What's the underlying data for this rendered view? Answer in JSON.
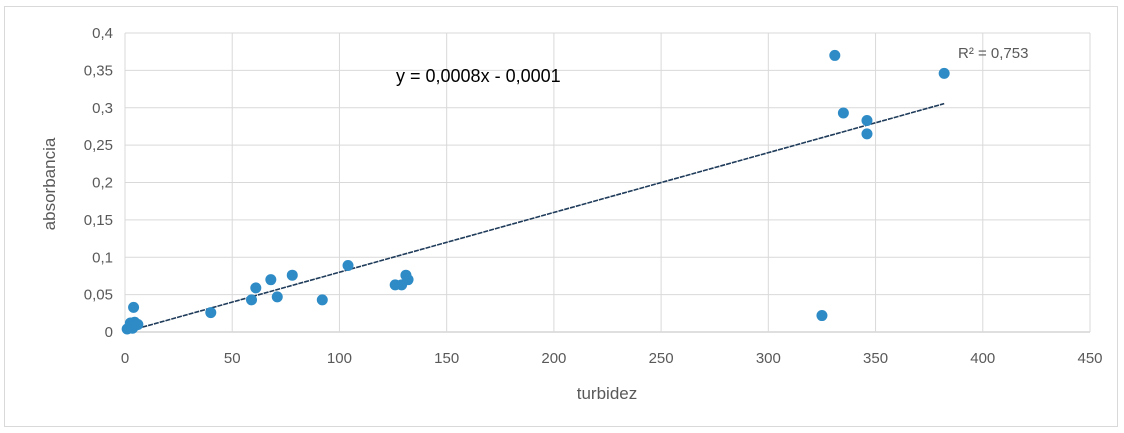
{
  "chart_data": {
    "type": "scatter",
    "title": "",
    "xlabel": "turbidez",
    "ylabel": "absorbancia",
    "xlim": [
      0,
      450
    ],
    "ylim": [
      0,
      0.4
    ],
    "x_ticks": [
      "0",
      "50",
      "100",
      "150",
      "200",
      "250",
      "300",
      "350",
      "400",
      "450"
    ],
    "y_ticks": [
      "0",
      "0,05",
      "0,1",
      "0,15",
      "0,2",
      "0,25",
      "0,3",
      "0,35",
      "0,4"
    ],
    "grid": true,
    "legend": "none",
    "colors": {
      "points": "#2e8bc6",
      "trendline": "#1f3b5a",
      "grid": "#d9d9d9"
    },
    "series": [
      {
        "points": [
          {
            "x": 1,
            "y": 0.004
          },
          {
            "x": 2,
            "y": 0.006
          },
          {
            "x": 2.5,
            "y": 0.012
          },
          {
            "x": 3,
            "y": 0.008
          },
          {
            "x": 3.5,
            "y": 0.005
          },
          {
            "x": 4,
            "y": 0.033
          },
          {
            "x": 4.5,
            "y": 0.013
          },
          {
            "x": 5,
            "y": 0.009
          },
          {
            "x": 6,
            "y": 0.01
          },
          {
            "x": 40,
            "y": 0.026
          },
          {
            "x": 59,
            "y": 0.043
          },
          {
            "x": 61,
            "y": 0.059
          },
          {
            "x": 68,
            "y": 0.07
          },
          {
            "x": 71,
            "y": 0.047
          },
          {
            "x": 78,
            "y": 0.076
          },
          {
            "x": 92,
            "y": 0.043
          },
          {
            "x": 104,
            "y": 0.089
          },
          {
            "x": 126,
            "y": 0.063
          },
          {
            "x": 129,
            "y": 0.063
          },
          {
            "x": 131,
            "y": 0.076
          },
          {
            "x": 132,
            "y": 0.07
          },
          {
            "x": 325,
            "y": 0.022
          },
          {
            "x": 331,
            "y": 0.37
          },
          {
            "x": 335,
            "y": 0.293
          },
          {
            "x": 346,
            "y": 0.283
          },
          {
            "x": 346,
            "y": 0.265
          },
          {
            "x": 382,
            "y": 0.346
          }
        ]
      }
    ],
    "trendline": {
      "type": "linear",
      "x_range": [
        0,
        382
      ],
      "slope": 0.0008,
      "intercept": -0.0001,
      "equation_label": "y = 0,0008x - 0,0001",
      "r2_label": "R² = 0,753"
    }
  }
}
